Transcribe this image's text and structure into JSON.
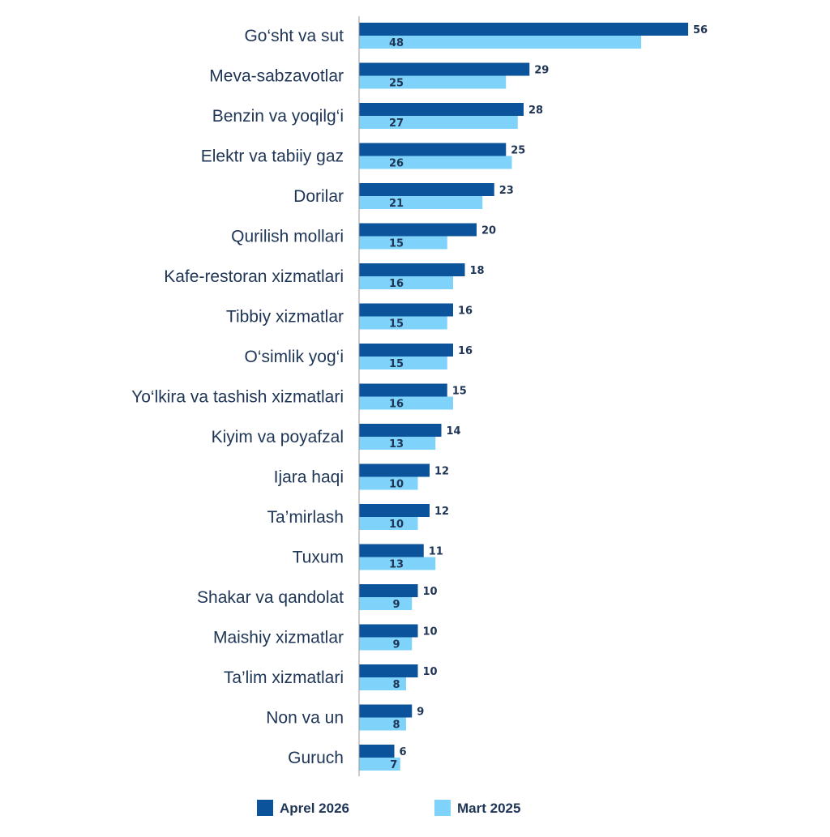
{
  "chart_data": {
    "type": "bar",
    "orientation": "horizontal",
    "categories": [
      "Go‘sht va sut",
      "Meva-sabzavotlar",
      "Benzin va yoqilg‘i",
      "Elektr va tabiiy gaz",
      "Dorilar",
      "Qurilish mollari",
      "Kafe-restoran xizmatlari",
      "Tibbiy xizmatlar",
      "O‘simlik yog‘i",
      "Yo‘lkira va tashish xizmatlari",
      "Kiyim va poyafzal",
      "Ijara haqi",
      "Ta’mirlash",
      "Tuxum",
      "Shakar va qandolat",
      "Maishiy xizmatlar",
      "Ta’lim xizmatlari",
      "Non va un",
      "Guruch"
    ],
    "series": [
      {
        "name": "Aprel 2026",
        "color": "#0b539b",
        "values": [
          56,
          29,
          28,
          25,
          23,
          20,
          18,
          16,
          16,
          15,
          14,
          12,
          12,
          11,
          10,
          10,
          10,
          9,
          6
        ]
      },
      {
        "name": "Mart 2025",
        "color": "#7fd3fa",
        "values": [
          48,
          25,
          27,
          26,
          21,
          15,
          16,
          15,
          15,
          16,
          13,
          10,
          10,
          13,
          9,
          9,
          8,
          8,
          7
        ]
      }
    ],
    "xlim": [
      0,
      60
    ],
    "grid": false,
    "legend_position": "bottom"
  }
}
